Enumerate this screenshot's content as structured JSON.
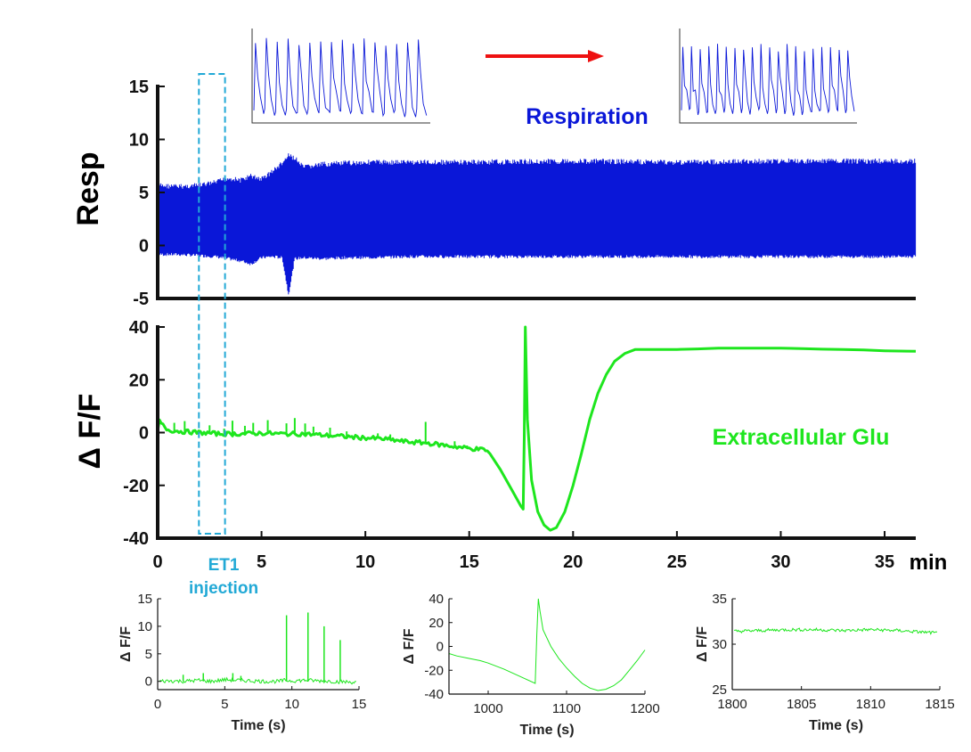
{
  "colors": {
    "resp": "#0a17d8",
    "glu": "#1ee61e",
    "et1": "#22a9d6",
    "arrow": "#ee1111",
    "axis": "#111111"
  },
  "chart_data": [
    {
      "name": "respiration-main",
      "type": "line",
      "title": "Respiration",
      "ylabel": "Resp",
      "xlabel": "min",
      "xlim": [
        0,
        36.5
      ],
      "ylim": [
        -5,
        15
      ],
      "yticks": [
        "-5",
        "0",
        "5",
        "10",
        "15"
      ],
      "envelope": {
        "t": [
          0,
          1,
          2,
          2.8,
          3.4,
          4,
          4.5,
          5,
          5.5,
          6,
          6.3,
          6.6,
          7,
          8,
          9,
          10,
          12,
          15,
          20,
          25,
          30,
          36.5
        ],
        "upper": [
          5.9,
          5.8,
          5.9,
          6.2,
          6.6,
          6.4,
          6.8,
          6.5,
          7.2,
          8.0,
          8.7,
          8.5,
          7.6,
          7.9,
          8.0,
          8.1,
          8.1,
          8.1,
          8.2,
          8.1,
          8.2,
          8.2
        ],
        "lower": [
          -1.0,
          -1.0,
          -1.1,
          -1.2,
          -1.4,
          -1.6,
          -1.9,
          -1.3,
          -1.2,
          -1.3,
          -4.8,
          -1.4,
          -1.3,
          -1.4,
          -1.3,
          -1.3,
          -1.2,
          -1.2,
          -1.2,
          -1.2,
          -1.2,
          -1.2
        ]
      }
    },
    {
      "name": "glutamate-main",
      "type": "line",
      "title": "Extracellular Glu",
      "ylabel": "Δ F/F",
      "xlabel": "min",
      "xlim": [
        0,
        36.5
      ],
      "ylim": [
        -40,
        40
      ],
      "xticks": [
        "0",
        "5",
        "10",
        "15",
        "20",
        "25",
        "30",
        "35"
      ],
      "yticks": [
        "-40",
        "-20",
        "0",
        "20",
        "40"
      ],
      "x": [
        0,
        0.1,
        0.2,
        0.5,
        1,
        2,
        3,
        4,
        5,
        6,
        7,
        8,
        9,
        10,
        11,
        12,
        13,
        14,
        15,
        15.8,
        16,
        16.5,
        17,
        17.5,
        17.6,
        17.65,
        17.7,
        17.8,
        18,
        18.3,
        18.6,
        18.9,
        19.2,
        19.6,
        20,
        20.4,
        20.8,
        21.2,
        21.6,
        22,
        22.5,
        23,
        24,
        25,
        26,
        27,
        28,
        29,
        30,
        31,
        32,
        33,
        34,
        35,
        36.5
      ],
      "y": [
        0,
        5,
        3,
        1,
        0.5,
        0,
        -0.5,
        -0.5,
        -0.2,
        -0.5,
        -0.5,
        -1,
        -1.5,
        -2,
        -2.5,
        -3.5,
        -4,
        -5,
        -6,
        -6.5,
        -8,
        -14,
        -21,
        -28,
        -29,
        -2,
        40,
        5,
        -18,
        -30,
        -35,
        -37,
        -36,
        -30,
        -20,
        -8,
        5,
        15,
        22,
        27,
        30,
        31.5,
        31.5,
        31.5,
        31.7,
        32,
        32,
        32,
        32,
        31.8,
        31.6,
        31.5,
        31.3,
        31,
        30.8
      ],
      "spikes": [
        [
          0.8,
          3
        ],
        [
          1.3,
          4
        ],
        [
          2.5,
          3
        ],
        [
          3.2,
          2
        ],
        [
          3.6,
          5
        ],
        [
          4.2,
          3
        ],
        [
          4.6,
          4
        ],
        [
          5.3,
          5
        ],
        [
          6.2,
          4
        ],
        [
          6.6,
          6
        ],
        [
          7.1,
          4
        ],
        [
          7.5,
          3
        ],
        [
          8.3,
          3
        ],
        [
          9.1,
          2
        ],
        [
          10.6,
          2
        ],
        [
          11.2,
          2
        ],
        [
          12.9,
          8
        ],
        [
          14.3,
          2
        ],
        [
          14.9,
          1
        ]
      ]
    },
    {
      "name": "glu-inset-1",
      "type": "line",
      "xlabel": "Time (s)",
      "ylabel": "Δ F/F",
      "xlim": [
        0,
        15
      ],
      "ylim": [
        -1.5,
        15
      ],
      "xticks": [
        "0",
        "5",
        "10",
        "15"
      ],
      "yticks": [
        "0",
        "5",
        "10",
        "15"
      ],
      "x": [
        0,
        1,
        2,
        3,
        4,
        5,
        6,
        7,
        8,
        9,
        9.5,
        10,
        11,
        12,
        13,
        14,
        15
      ],
      "y": [
        0,
        0.1,
        0,
        0.2,
        0,
        0.3,
        0.2,
        0.1,
        0,
        0,
        0.2,
        0.1,
        0.2,
        0.1,
        0,
        -0.1,
        -0.2
      ],
      "spikes": [
        [
          1.9,
          1.2
        ],
        [
          3.4,
          1.5
        ],
        [
          5.6,
          1.5
        ],
        [
          6.2,
          1
        ],
        [
          9.6,
          12
        ],
        [
          11.2,
          12.5
        ],
        [
          12.4,
          10
        ],
        [
          13.6,
          7.5
        ]
      ]
    },
    {
      "name": "glu-inset-2",
      "type": "line",
      "xlabel": "Time (s)",
      "ylabel": "Δ F/F",
      "xlim": [
        950,
        1200
      ],
      "ylim": [
        -40,
        40
      ],
      "xticks": [
        "1000",
        "1100",
        "1200"
      ],
      "yticks": [
        "-40",
        "-20",
        "0",
        "20",
        "40"
      ],
      "x": [
        950,
        960,
        975,
        990,
        1000,
        1020,
        1040,
        1060,
        1062,
        1064,
        1066,
        1070,
        1080,
        1090,
        1100,
        1110,
        1120,
        1130,
        1140,
        1150,
        1160,
        1170,
        1180,
        1190,
        1200
      ],
      "y": [
        -6,
        -8,
        -10,
        -12,
        -14,
        -19,
        -25,
        -31,
        10,
        40,
        30,
        14,
        0,
        -10,
        -18,
        -25,
        -31,
        -35,
        -37,
        -36,
        -33,
        -28,
        -20,
        -12,
        -3
      ]
    },
    {
      "name": "glu-inset-3",
      "type": "line",
      "xlabel": "Time (s)",
      "ylabel": "Δ F/F",
      "xlim": [
        1800,
        1815
      ],
      "ylim": [
        25,
        35
      ],
      "xticks": [
        "1800",
        "1805",
        "1810",
        "1815"
      ],
      "yticks": [
        "25",
        "30",
        "35"
      ],
      "x": [
        1800,
        1802,
        1804,
        1806,
        1808,
        1810,
        1812,
        1814,
        1815
      ],
      "y": [
        31.4,
        31.5,
        31.6,
        31.6,
        31.5,
        31.6,
        31.5,
        31.3,
        31.2
      ]
    }
  ],
  "annotations": {
    "et1_label_line1": "ET1",
    "et1_label_line2": "injection",
    "et1_window_min": [
      2.2,
      3.2
    ]
  }
}
